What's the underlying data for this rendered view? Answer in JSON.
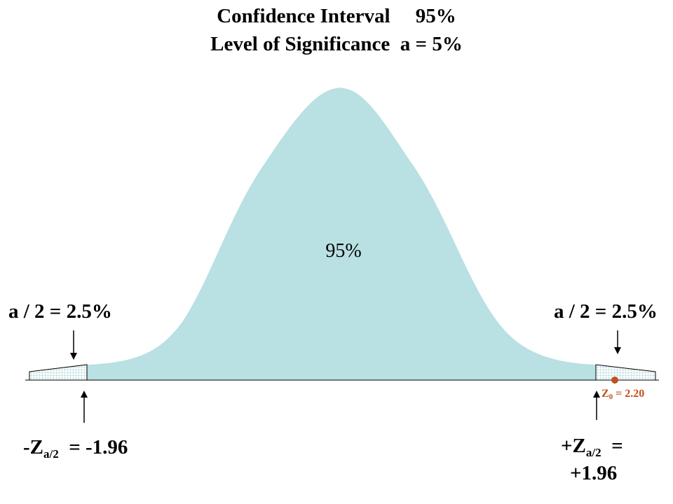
{
  "title": {
    "line1": "Confidence Interval     95%",
    "line2": "Level of Significance  a = 5%"
  },
  "center_label": "95%",
  "left_tail_label": "a / 2 = 2.5%",
  "right_tail_label": "a / 2 = 2.5%",
  "left_critical": {
    "prefix": "-Z",
    "sub": "a/2",
    "suffix": "  = -1.96"
  },
  "right_critical": {
    "prefix": "+Z",
    "sub": "a/2",
    "suffix": "  =",
    "line2": "+1.96"
  },
  "test_statistic": {
    "prefix": "Z",
    "sub": "0",
    "suffix": " = 2.20"
  },
  "colors": {
    "curve_fill": "#b9e0e3",
    "tail_hatch": "#9fd0d4",
    "test_point": "#c0501c"
  }
}
